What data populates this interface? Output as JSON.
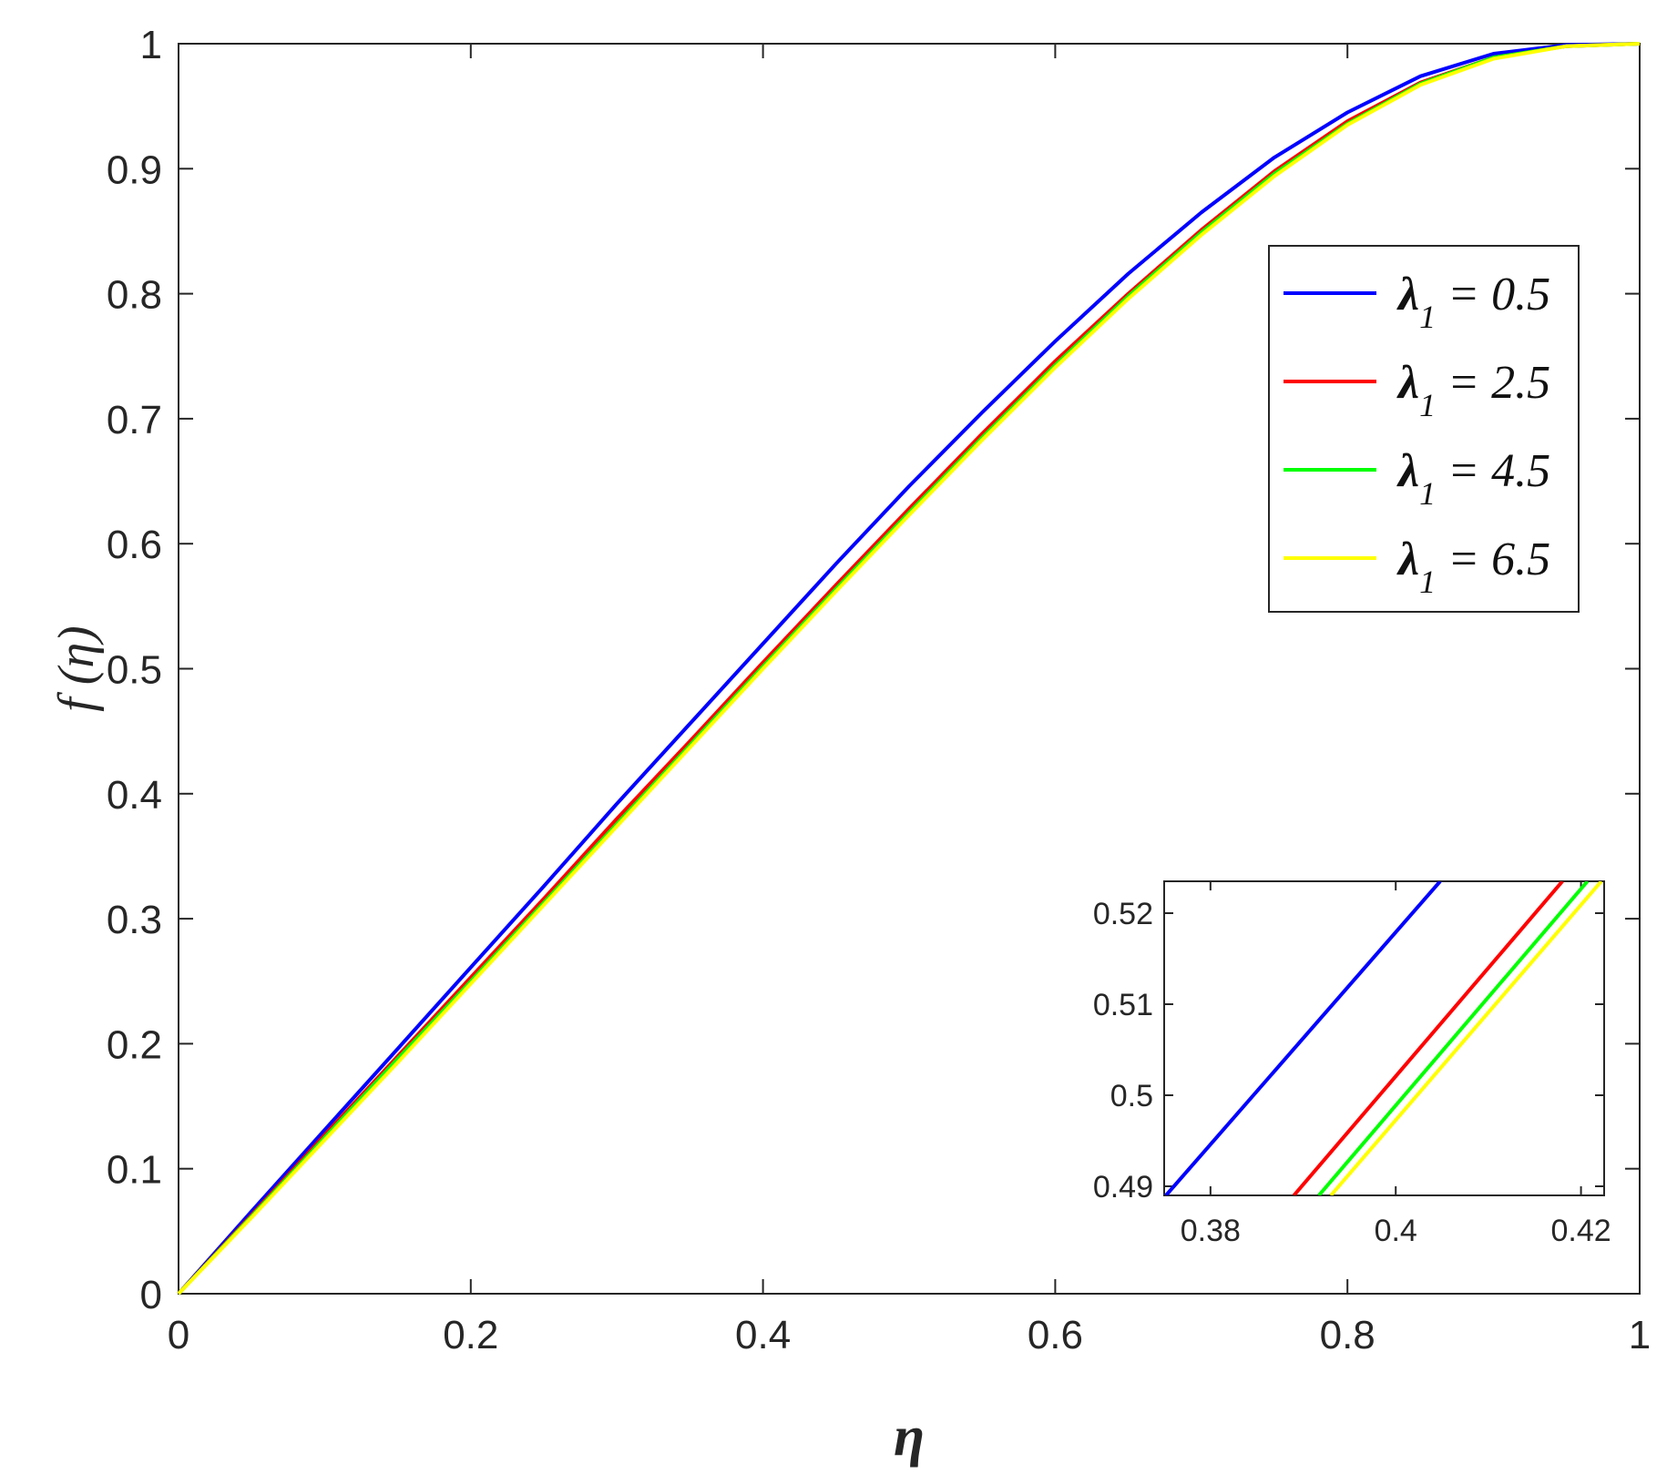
{
  "chart_data": {
    "type": "line",
    "xlabel": "η",
    "ylabel": "f (η)",
    "xlim": [
      0,
      1
    ],
    "ylim": [
      0,
      1
    ],
    "xticks": [
      "0",
      "0.2",
      "0.4",
      "0.6",
      "0.8",
      "1"
    ],
    "yticks": [
      "0",
      "0.1",
      "0.2",
      "0.3",
      "0.4",
      "0.5",
      "0.6",
      "0.7",
      "0.8",
      "0.9",
      "1"
    ],
    "grid": false,
    "legend_position": "top-right",
    "series": [
      {
        "name": "λ1 = 0.5",
        "symbol": "λ",
        "sub": "1",
        "value_text": " = 0.5",
        "color": "#0000ff",
        "x": [
          0,
          0.05,
          0.1,
          0.15,
          0.2,
          0.25,
          0.3,
          0.35,
          0.4,
          0.45,
          0.5,
          0.55,
          0.6,
          0.65,
          0.7,
          0.75,
          0.8,
          0.85,
          0.9,
          0.95,
          1
        ],
        "y": [
          0,
          0.066,
          0.131,
          0.196,
          0.261,
          0.326,
          0.392,
          0.456,
          0.52,
          0.584,
          0.646,
          0.705,
          0.762,
          0.816,
          0.865,
          0.909,
          0.945,
          0.974,
          0.992,
          0.999,
          1
        ]
      },
      {
        "name": "λ1 = 2.5",
        "symbol": "λ",
        "sub": "1",
        "value_text": " = 2.5",
        "color": "#ff0000",
        "x": [
          0,
          0.05,
          0.1,
          0.15,
          0.2,
          0.25,
          0.3,
          0.35,
          0.4,
          0.45,
          0.5,
          0.55,
          0.6,
          0.65,
          0.7,
          0.75,
          0.8,
          0.85,
          0.9,
          0.95,
          1
        ],
        "y": [
          0,
          0.063,
          0.127,
          0.19,
          0.253,
          0.316,
          0.38,
          0.442,
          0.505,
          0.567,
          0.628,
          0.688,
          0.746,
          0.8,
          0.851,
          0.898,
          0.938,
          0.969,
          0.989,
          0.998,
          1
        ]
      },
      {
        "name": "λ1 = 4.5",
        "symbol": "λ",
        "sub": "1",
        "value_text": " = 4.5",
        "color": "#00ff00",
        "x": [
          0,
          0.05,
          0.1,
          0.15,
          0.2,
          0.25,
          0.3,
          0.35,
          0.4,
          0.45,
          0.5,
          0.55,
          0.6,
          0.65,
          0.7,
          0.75,
          0.8,
          0.85,
          0.9,
          0.95,
          1
        ],
        "y": [
          0,
          0.062,
          0.125,
          0.188,
          0.25,
          0.313,
          0.376,
          0.439,
          0.502,
          0.564,
          0.625,
          0.685,
          0.743,
          0.798,
          0.849,
          0.896,
          0.936,
          0.968,
          0.989,
          0.998,
          1
        ]
      },
      {
        "name": "λ1 = 6.5",
        "symbol": "λ",
        "sub": "1",
        "value_text": " = 6.5",
        "color": "#ffff00",
        "x": [
          0,
          0.05,
          0.1,
          0.15,
          0.2,
          0.25,
          0.3,
          0.35,
          0.4,
          0.45,
          0.5,
          0.55,
          0.6,
          0.65,
          0.7,
          0.75,
          0.8,
          0.85,
          0.9,
          0.95,
          1
        ],
        "y": [
          0,
          0.061,
          0.123,
          0.185,
          0.248,
          0.311,
          0.374,
          0.437,
          0.5,
          0.562,
          0.623,
          0.683,
          0.741,
          0.796,
          0.847,
          0.894,
          0.935,
          0.967,
          0.988,
          0.998,
          1
        ]
      }
    ],
    "inset": {
      "xlim": [
        0.375,
        0.4225
      ],
      "ylim": [
        0.489,
        0.5235
      ],
      "xticks": [
        "0.38",
        "0.4",
        "0.42"
      ],
      "yticks": [
        "0.49",
        "0.5",
        "0.51",
        "0.52"
      ],
      "series": [
        {
          "color": "#0000ff",
          "x": [
            0.3752,
            0.4048
          ],
          "y": [
            0.489,
            0.5235
          ]
        },
        {
          "color": "#ff0000",
          "x": [
            0.389,
            0.418
          ],
          "y": [
            0.489,
            0.5235
          ]
        },
        {
          "color": "#00ff00",
          "x": [
            0.3917,
            0.4207
          ],
          "y": [
            0.489,
            0.5235
          ]
        },
        {
          "color": "#ffff00",
          "x": [
            0.393,
            0.4222
          ],
          "y": [
            0.489,
            0.5235
          ]
        }
      ]
    }
  }
}
